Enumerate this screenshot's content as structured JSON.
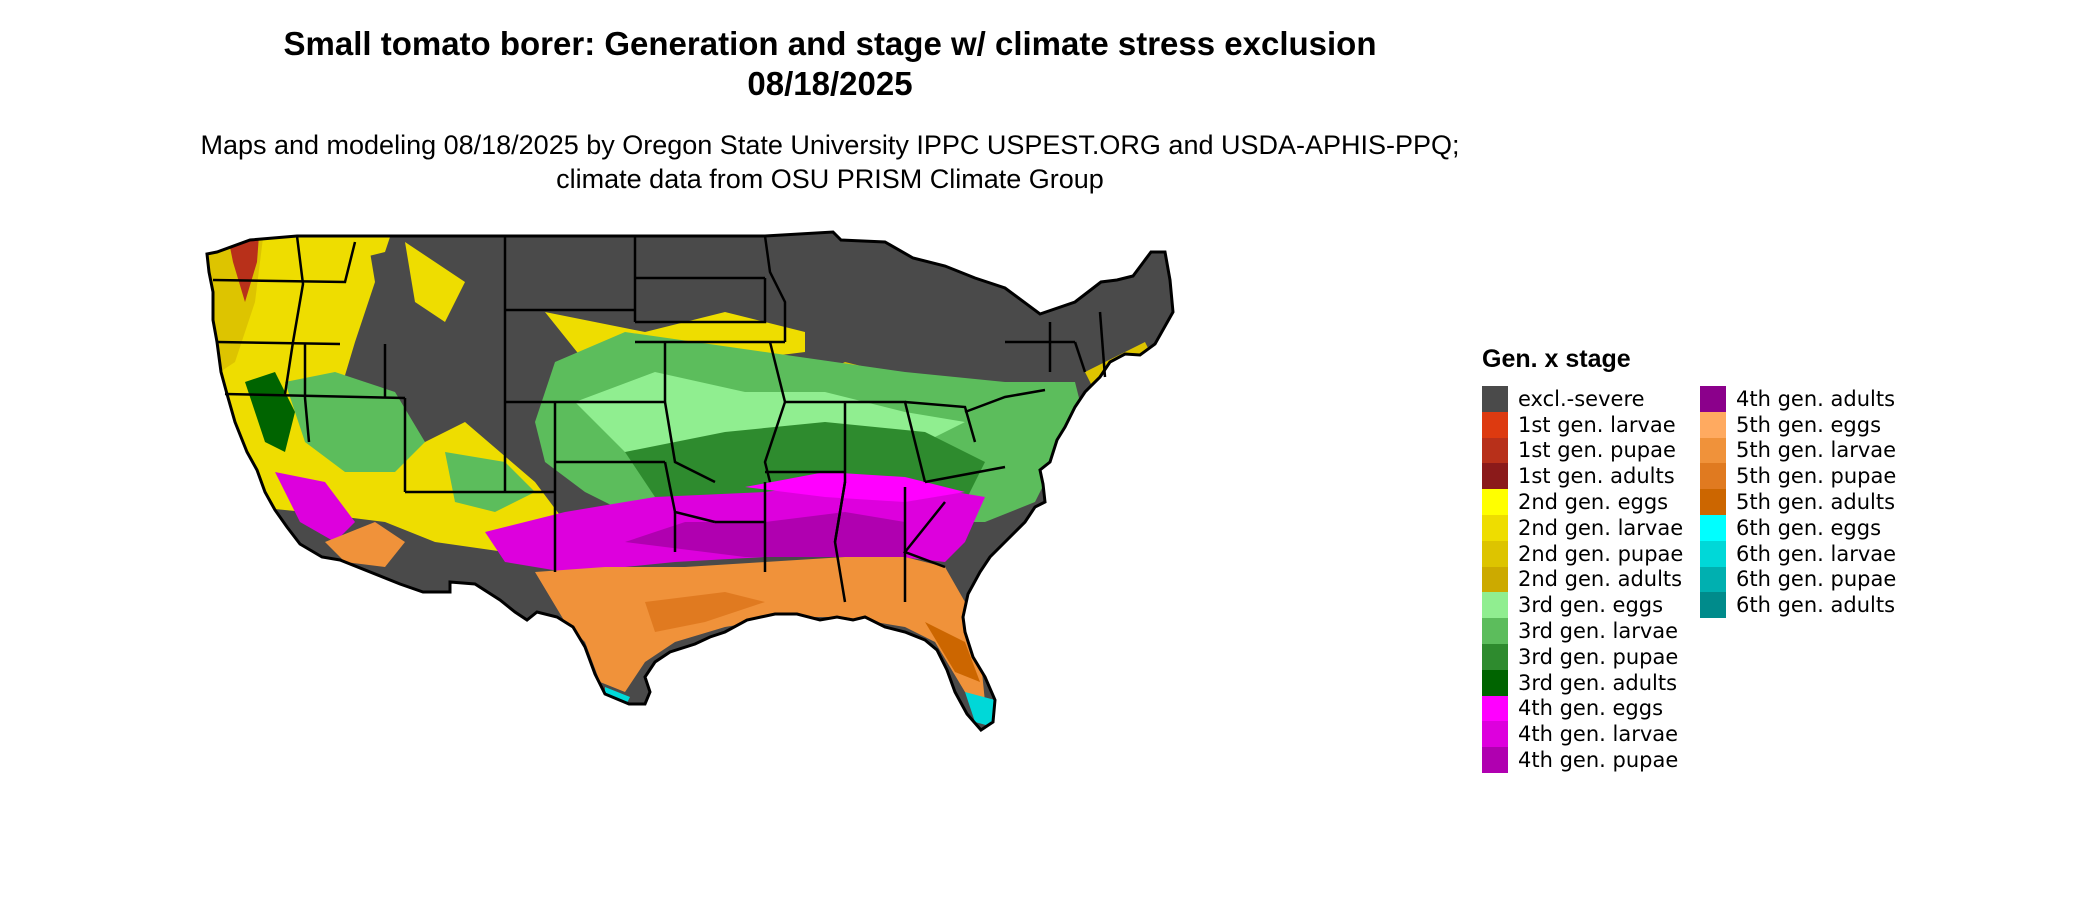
{
  "title": "Small tomato borer: Generation and stage w/ climate stress exclusion 08/18/2025",
  "subtitle": "Maps and modeling 08/18/2025 by Oregon State University IPPC USPEST.ORG and USDA-APHIS-PPQ; climate data from OSU PRISM Climate Group",
  "legend": {
    "title": "Gen. x stage",
    "items": [
      {
        "label": "excl.-severe",
        "color": "#4a4a4a"
      },
      {
        "label": "1st gen. larvae",
        "color": "#dd3a10"
      },
      {
        "label": "1st gen. pupae",
        "color": "#b8301a"
      },
      {
        "label": "1st gen. adults",
        "color": "#8b1a1a"
      },
      {
        "label": "2nd gen. eggs",
        "color": "#ffff00"
      },
      {
        "label": "2nd gen. larvae",
        "color": "#eedd00"
      },
      {
        "label": "2nd gen. pupae",
        "color": "#ddc400"
      },
      {
        "label": "2nd gen. adults",
        "color": "#ccaa00"
      },
      {
        "label": "3rd gen. eggs",
        "color": "#90ee90"
      },
      {
        "label": "3rd gen. larvae",
        "color": "#5cbd5c"
      },
      {
        "label": "3rd gen. pupae",
        "color": "#2e8b2e"
      },
      {
        "label": "3rd gen. adults",
        "color": "#006400"
      },
      {
        "label": "4th gen. eggs",
        "color": "#ff00ff"
      },
      {
        "label": "4th gen. larvae",
        "color": "#dd00dd"
      },
      {
        "label": "4th gen. pupae",
        "color": "#b000b0"
      },
      {
        "label": "4th gen. adults",
        "color": "#8b008b"
      },
      {
        "label": "5th gen. eggs",
        "color": "#ffaa60"
      },
      {
        "label": "5th gen. larvae",
        "color": "#f0923a"
      },
      {
        "label": "5th gen. pupae",
        "color": "#e07a20"
      },
      {
        "label": "5th gen. adults",
        "color": "#cc6600"
      },
      {
        "label": "6th gen. eggs",
        "color": "#00ffff"
      },
      {
        "label": "6th gen. larvae",
        "color": "#00d8d8"
      },
      {
        "label": "6th gen. pupae",
        "color": "#00b0b0"
      },
      {
        "label": "6th gen. adults",
        "color": "#008b8b"
      }
    ]
  }
}
